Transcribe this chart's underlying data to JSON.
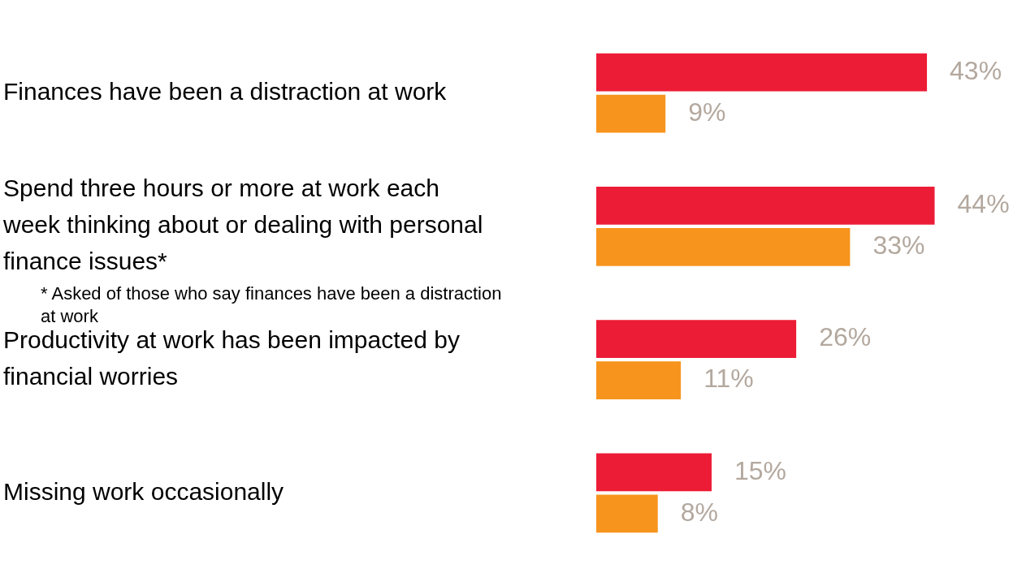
{
  "chart_data": {
    "type": "bar",
    "orientation": "horizontal",
    "categories": [
      "Finances have been a distraction at work",
      "Spend three hours or more at work each week thinking about or dealing with personal finance issues*",
      "Productivity at work has been impacted by financial worries",
      "Missing work occasionally"
    ],
    "series": [
      {
        "color": "#ed1c36",
        "values": [
          43,
          44,
          26,
          15
        ],
        "value_labels": [
          "43%",
          "44%",
          "26%",
          "15%"
        ]
      },
      {
        "color": "#f7941d",
        "values": [
          9,
          33,
          11,
          8
        ],
        "value_labels": [
          "9%",
          "33%",
          "11%",
          "8%"
        ]
      }
    ],
    "legend": false,
    "annotations": [
      "* Asked of those who say finances have been a distraction at work"
    ]
  }
}
